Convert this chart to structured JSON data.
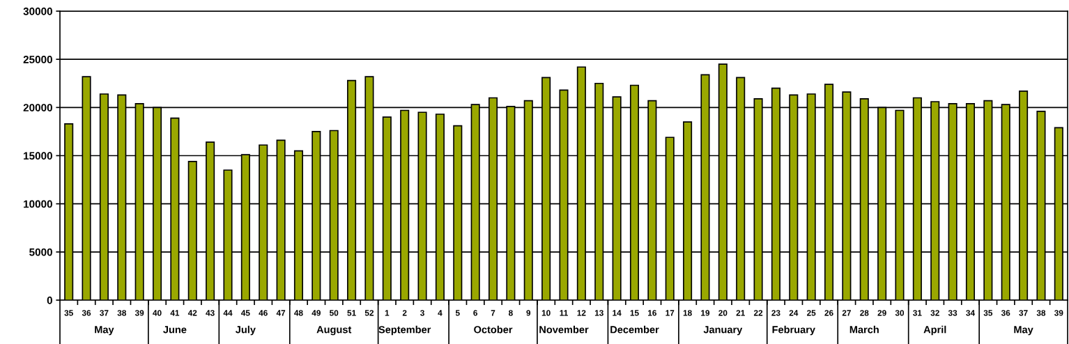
{
  "chart_data": {
    "type": "bar",
    "categories": [
      "35",
      "36",
      "37\nMay",
      "38",
      "39",
      "40",
      "41\nJune",
      "42",
      "43",
      "44",
      "45\nJuly",
      "46",
      "47",
      "48",
      "49",
      "50\nAugust",
      "51",
      "52",
      "1",
      "2\nSeptember",
      "3",
      "4",
      "5",
      "6",
      "7\nOctober",
      "8",
      "9",
      "10",
      "11\nNovember",
      "12",
      "13",
      "14",
      "15\nDecember",
      "16",
      "17",
      "18",
      "19",
      "20\nJanuary",
      "21",
      "22",
      "23",
      "24\nFebruary",
      "25",
      "26",
      "27",
      "28\nMarch",
      "29",
      "30",
      "31",
      "32\nApril",
      "33",
      "34",
      "35",
      "36",
      "37\nMay",
      "38",
      "39"
    ],
    "values": [
      18300,
      23200,
      21400,
      21300,
      20400,
      20000,
      18900,
      14400,
      16400,
      13500,
      15100,
      16100,
      16600,
      15500,
      17500,
      17600,
      22800,
      23200,
      19000,
      19700,
      19500,
      19300,
      18100,
      20300,
      21000,
      20100,
      20700,
      23100,
      21800,
      24200,
      22500,
      21100,
      22300,
      20700,
      16900,
      18500,
      23400,
      24500,
      23100,
      20900,
      22000,
      21300,
      21400,
      22400,
      21600,
      20900,
      20000,
      19700,
      21000,
      20600,
      20400,
      20400,
      20700,
      20300,
      21700,
      19600,
      17900
    ],
    "color": "#9aa800",
    "ylim": [
      0,
      30000
    ],
    "yticks": [
      0,
      5000,
      10000,
      15000,
      20000,
      25000,
      30000
    ],
    "grid": "y"
  }
}
